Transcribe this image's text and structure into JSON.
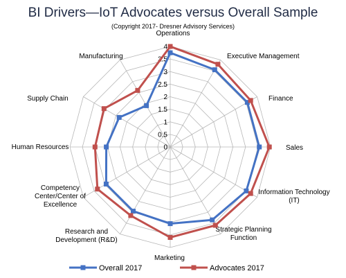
{
  "chart_data": {
    "type": "radar",
    "title": "BI Drivers—IoT Advocates versus Overall Sample",
    "subtitle": "(Copyright 2017- Dresner Advisory Services)",
    "categories": [
      "Operations",
      "Executive Management",
      "Finance",
      "Sales",
      "Information Technology (IT)",
      "Strategic Planning Function",
      "Marketing",
      "Research and Development (R&D)",
      "Competency Center/Center of Excellence",
      "Human Resources",
      "Supply Chain",
      "Manufacturing"
    ],
    "ticks": [
      "0",
      "0.5",
      "1",
      "1.5",
      "2",
      "2.5",
      "3",
      "3.5",
      "4"
    ],
    "rlim": [
      0,
      4
    ],
    "grid": true,
    "legend_position": "bottom",
    "series": [
      {
        "name": "Overall 2017",
        "color": "#4472c4",
        "marker": "square",
        "values": [
          3.75,
          3.55,
          3.55,
          3.55,
          3.5,
          3.35,
          3.05,
          2.95,
          2.95,
          2.55,
          2.35,
          1.9
        ]
      },
      {
        "name": "Advocates 2017",
        "color": "#c0504d",
        "marker": "square",
        "values": [
          4.0,
          3.8,
          3.7,
          3.95,
          3.7,
          3.6,
          3.6,
          3.15,
          3.35,
          3.0,
          3.05,
          2.6
        ]
      }
    ]
  }
}
